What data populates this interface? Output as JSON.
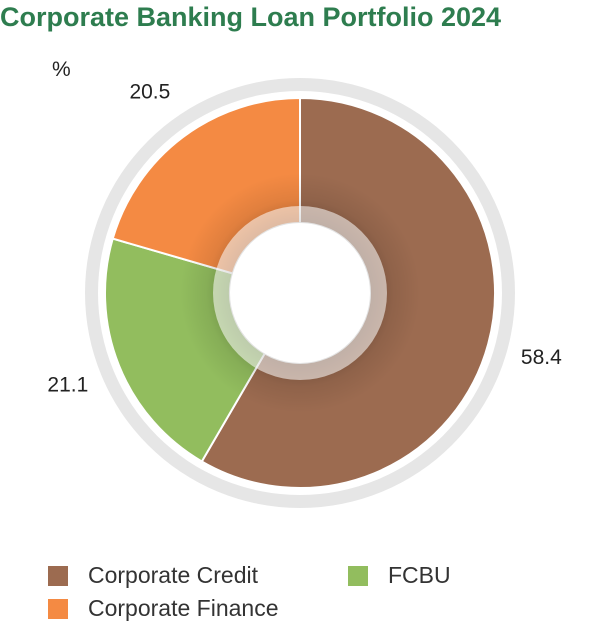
{
  "title": "Corporate Banking Loan Portfolio 2024",
  "unit_label": "%",
  "chart_data": {
    "type": "pie",
    "title": "Corporate Banking Loan Portfolio 2024",
    "unit": "%",
    "categories": [
      "Corporate Credit",
      "FCBU",
      "Corporate Finance"
    ],
    "values": [
      58.4,
      21.1,
      20.5
    ],
    "value_labels": [
      "58.4",
      "21.1",
      "20.5"
    ],
    "colors": [
      "#9c6b50",
      "#92bd5e",
      "#f48a43"
    ],
    "donut": true,
    "start_angle_deg": 0,
    "direction": "clockwise",
    "legend_position": "bottom"
  },
  "legend": [
    {
      "label": "Corporate Credit",
      "color": "#9c6b50"
    },
    {
      "label": "Corporate Finance",
      "color": "#f48a43"
    },
    {
      "label": "FCBU",
      "color": "#92bd5e"
    }
  ]
}
